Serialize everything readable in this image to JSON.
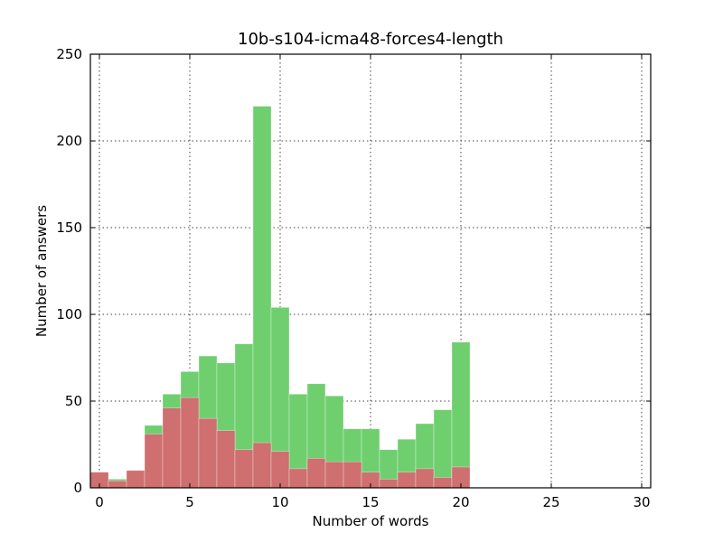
{
  "chart_data": {
    "type": "bar",
    "title": "10b-s104-icma48-forces4-length",
    "xlabel": "Number of words",
    "ylabel": "Number of answers",
    "xlim": [
      -0.5,
      30.5
    ],
    "ylim": [
      0,
      250
    ],
    "xticks": [
      0,
      5,
      10,
      15,
      20,
      25,
      30
    ],
    "yticks": [
      0,
      50,
      100,
      150,
      200,
      250
    ],
    "grid": true,
    "bins": [
      0,
      1,
      2,
      3,
      4,
      5,
      6,
      7,
      8,
      9,
      10,
      11,
      12,
      13,
      14,
      15,
      16,
      17,
      18,
      19,
      20
    ],
    "series": [
      {
        "color": "#6fcf6f",
        "values": [
          9,
          5,
          10,
          36,
          54,
          67,
          76,
          72,
          83,
          220,
          104,
          54,
          60,
          53,
          34,
          34,
          22,
          28,
          37,
          45,
          84
        ]
      },
      {
        "color": "#cf6f6f",
        "values": [
          9,
          4,
          10,
          31,
          46,
          52,
          40,
          33,
          22,
          26,
          21,
          11,
          17,
          15,
          15,
          9,
          5,
          9,
          11,
          6,
          12
        ]
      }
    ]
  }
}
